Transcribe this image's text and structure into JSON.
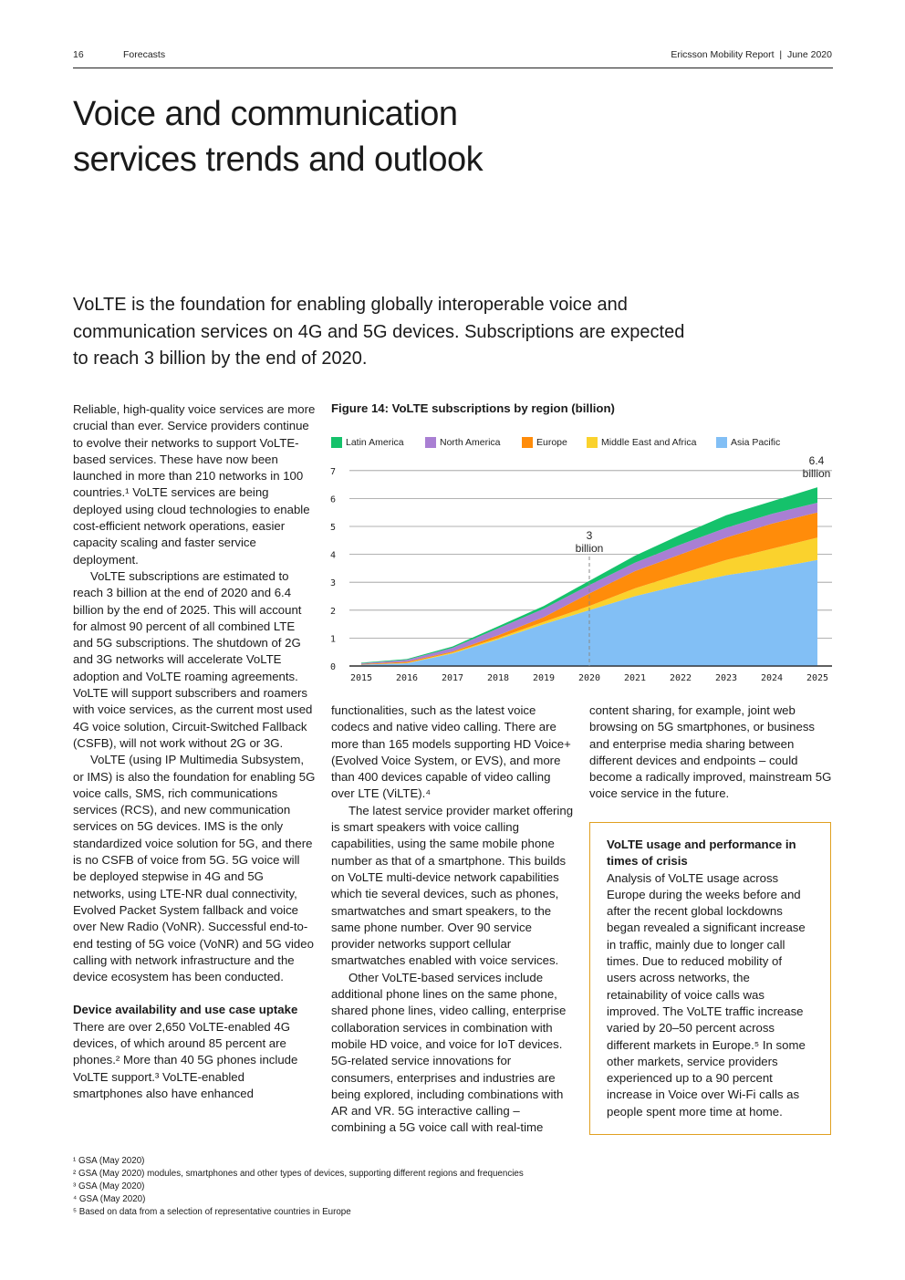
{
  "header": {
    "page_number": "16",
    "section": "Forecasts",
    "publication": "Ericsson Mobility Report  |  June 2020"
  },
  "title": [
    "Voice and communication",
    "services trends and outlook"
  ],
  "lead": "VoLTE is the foundation for enabling globally interoperable voice and communication services on 4G and 5G devices. Subscriptions are expected to reach 3 billion by the end of 2020.",
  "col1": {
    "p1": "Reliable, high-quality voice services are more crucial than ever. Service providers continue to evolve their networks to support VoLTE-based services. These have now been launched in more than 210 networks in 100 countries.¹ VoLTE services are being deployed using cloud technologies to enable cost-efficient network operations, easier capacity scaling and faster service deployment.",
    "p2": "VoLTE subscriptions are estimated to reach 3 billion at the end of 2020 and 6.4 billion by the end of 2025. This will account for almost 90 percent of all combined LTE and 5G subscriptions. The shutdown of 2G and 3G networks will accelerate VoLTE adoption and VoLTE roaming agreements. VoLTE will support subscribers and roamers with voice services, as the current most used 4G voice solution, Circuit-Switched Fallback (CSFB), will not work without 2G or 3G.",
    "p3": "VoLTE (using IP Multimedia Subsystem, or IMS) is also the foundation for enabling 5G voice calls, SMS, rich communications services (RCS), and new communication services on 5G devices. IMS is the only standardized voice solution for 5G, and there is no CSFB of voice from 5G. 5G voice will be deployed stepwise in 4G and 5G networks, using LTE-NR dual connectivity, Evolved Packet System fallback and voice over New Radio (VoNR). Successful end-to-end testing of 5G voice (VoNR) and 5G video calling with network infrastructure and the device ecosystem has been conducted.",
    "heading": "Device availability and use case uptake",
    "p4": "There are over 2,650 VoLTE-enabled 4G devices, of which around 85 percent are phones.² More than 40 5G phones include VoLTE support.³ VoLTE-enabled smartphones also have enhanced"
  },
  "col2": {
    "p1": "functionalities, such as the latest voice codecs and native video calling. There are more than 165 models supporting HD Voice+ (Evolved Voice System, or EVS), and more than 400 devices capable of video calling over LTE (ViLTE).⁴",
    "p2": "The latest service provider market offering is smart speakers with voice calling capabilities, using the same mobile phone number as that of a smartphone. This builds on VoLTE multi-device network capabilities which tie several devices, such as phones, smartwatches and smart speakers, to the same phone number. Over 90 service provider networks support cellular smartwatches enabled with voice services.",
    "p3": "Other VoLTE-based services include additional phone lines on the same phone, shared phone lines, video calling, enterprise collaboration services in combination with mobile HD voice, and voice for IoT devices. 5G-related service innovations for consumers, enterprises and industries are being explored, including combinations with AR and VR. 5G interactive calling – combining a 5G voice call with real-time"
  },
  "col3": {
    "p1": "content sharing, for example, joint web browsing on 5G smartphones, or business and enterprise media sharing between different devices and endpoints – could become a radically improved, mainstream 5G voice service in the future.",
    "box_title": "VoLTE usage and performance in times of crisis",
    "box_text": "Analysis of VoLTE usage across Europe during the weeks before and after the recent global lockdowns began revealed a significant increase in traffic, mainly due to longer call times. Due to reduced mobility of users across networks, the retainability of voice calls was improved. The VoLTE traffic increase varied by 20–50 percent across different markets in Europe.⁵ In some other markets, service providers experienced up to a 90 percent increase in Voice over Wi-Fi calls as people spent more time at home."
  },
  "chart_data": {
    "type": "area",
    "stacked": true,
    "title": "Figure 14: VoLTE subscriptions by region (billion)",
    "categories": [
      "2015",
      "2016",
      "2017",
      "2018",
      "2019",
      "2020",
      "2021",
      "2022",
      "2023",
      "2024",
      "2025"
    ],
    "series": [
      {
        "name": "Asia Pacific",
        "color": "#82bff5",
        "values": [
          0.05,
          0.1,
          0.45,
          0.95,
          1.5,
          2.0,
          2.5,
          2.9,
          3.25,
          3.5,
          3.8
        ]
      },
      {
        "name": "Middle East and Africa",
        "color": "#fad22d",
        "values": [
          0.0,
          0.01,
          0.03,
          0.05,
          0.08,
          0.15,
          0.28,
          0.4,
          0.55,
          0.7,
          0.8
        ]
      },
      {
        "name": "Europe",
        "color": "#ff8c0a",
        "values": [
          0.02,
          0.04,
          0.04,
          0.1,
          0.17,
          0.45,
          0.62,
          0.7,
          0.8,
          0.9,
          0.9
        ]
      },
      {
        "name": "North America",
        "color": "#a97fd3",
        "values": [
          0.03,
          0.07,
          0.13,
          0.25,
          0.3,
          0.3,
          0.3,
          0.35,
          0.35,
          0.35,
          0.35
        ]
      },
      {
        "name": "Latin America",
        "color": "#15c26b",
        "values": [
          0.02,
          0.03,
          0.05,
          0.07,
          0.1,
          0.15,
          0.25,
          0.35,
          0.45,
          0.45,
          0.55
        ]
      }
    ],
    "legend_order": [
      "Latin America",
      "North America",
      "Europe",
      "Middle East and Africa",
      "Asia Pacific"
    ],
    "legend_position": "top",
    "ylim": [
      0,
      7
    ],
    "yticks": [
      "0",
      "1",
      "2",
      "3",
      "4",
      "5",
      "6",
      "7"
    ],
    "grid": true,
    "annotations": [
      {
        "x": "2020",
        "y": 3,
        "text": [
          "3",
          "billion"
        ],
        "dashed_line": true
      },
      {
        "x": "2025",
        "y": 6.4,
        "text": [
          "6.4",
          "billion"
        ]
      }
    ]
  },
  "footnotes": [
    "¹ GSA (May 2020)",
    "² GSA (May 2020) modules, smartphones and other types of devices, supporting different regions and frequencies",
    "³ GSA (May 2020)",
    "⁴ GSA (May 2020)",
    "⁵ Based on data from a selection of representative countries in Europe"
  ]
}
